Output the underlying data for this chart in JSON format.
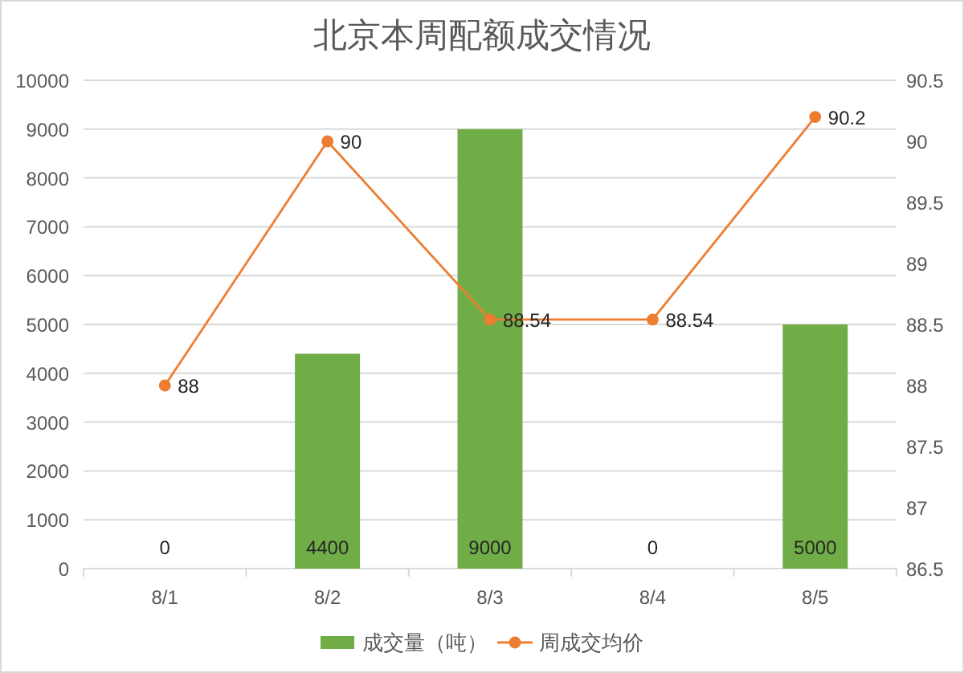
{
  "chart_data": {
    "type": "bar",
    "title": "北京本周配额成交情况",
    "categories": [
      "8/1",
      "8/2",
      "8/3",
      "8/4",
      "8/5"
    ],
    "series": [
      {
        "name": "成交量（吨）",
        "color": "#70ad47",
        "values": [
          0,
          4400,
          9000,
          0,
          5000
        ]
      },
      {
        "name": "周成交均价",
        "type": "line",
        "axis": "y2",
        "color": "#ed7d31",
        "marker": "circle",
        "values": [
          88,
          90,
          88.54,
          88.54,
          90.2
        ]
      }
    ],
    "ylim": [
      0,
      10000
    ],
    "yticks": [
      0,
      1000,
      2000,
      3000,
      4000,
      5000,
      6000,
      7000,
      8000,
      9000,
      10000
    ],
    "y2lim": [
      86.5,
      90.5
    ],
    "y2ticks": [
      86.5,
      87,
      87.5,
      88,
      88.5,
      89,
      89.5,
      90,
      90.5
    ],
    "grid": "y",
    "legend": "bottom",
    "data_labels": true
  }
}
